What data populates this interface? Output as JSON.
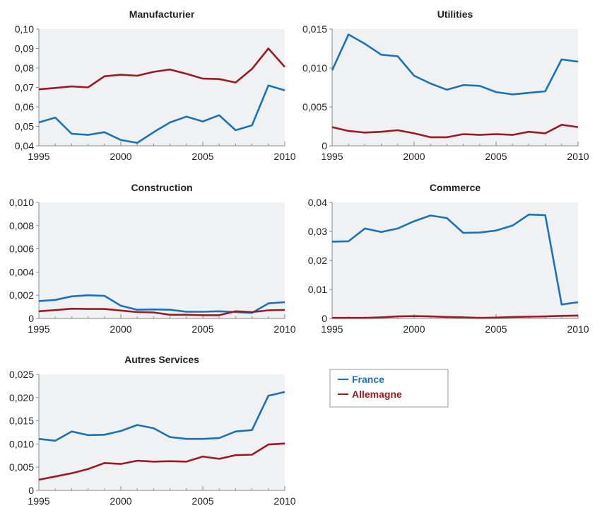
{
  "legend": {
    "items": [
      {
        "label": "France",
        "color": "#1a73b8"
      },
      {
        "label": "Allemagne",
        "color": "#9b1b24"
      }
    ]
  },
  "colors": {
    "panel_bg": "#f0f1f2",
    "axis": "#888888"
  },
  "chart_data": [
    {
      "type": "line",
      "title": "Manufacturier",
      "xlim": [
        1995,
        2010
      ],
      "ylim": [
        0.04,
        0.1
      ],
      "yticks": [
        "0,04",
        "0,05",
        "0,06",
        "0,07",
        "0,08",
        "0,09",
        "0,10"
      ],
      "xticks": [
        "1995",
        "2000",
        "2005",
        "2010"
      ],
      "x": [
        1995,
        1996,
        1997,
        1998,
        1999,
        2000,
        2001,
        2002,
        2003,
        2004,
        2005,
        2006,
        2007,
        2008,
        2009,
        2010
      ],
      "series": [
        {
          "name": "France",
          "values": [
            0.052,
            0.0545,
            0.0462,
            0.0456,
            0.047,
            0.043,
            0.0415,
            0.047,
            0.052,
            0.055,
            0.0525,
            0.0557,
            0.048,
            0.0505,
            0.071,
            0.0685
          ]
        },
        {
          "name": "Allemagne",
          "values": [
            0.069,
            0.0697,
            0.0705,
            0.07,
            0.0757,
            0.0765,
            0.076,
            0.078,
            0.0792,
            0.077,
            0.0745,
            0.0743,
            0.0725,
            0.0795,
            0.09,
            0.0805
          ]
        }
      ]
    },
    {
      "type": "line",
      "title": "Utilities",
      "xlim": [
        1995,
        2010
      ],
      "ylim": [
        0,
        0.015
      ],
      "yticks": [
        "0",
        "0,005",
        "0,010",
        "0,015"
      ],
      "xticks": [
        "1995",
        "2000",
        "2005",
        "2010"
      ],
      "x": [
        1995,
        1996,
        1997,
        1998,
        1999,
        2000,
        2001,
        2002,
        2003,
        2004,
        2005,
        2006,
        2007,
        2008,
        2009,
        2010
      ],
      "series": [
        {
          "name": "France",
          "values": [
            0.0097,
            0.0143,
            0.0131,
            0.0117,
            0.0115,
            0.009,
            0.008,
            0.0072,
            0.0078,
            0.0077,
            0.0069,
            0.0066,
            0.0068,
            0.007,
            0.0111,
            0.0108
          ]
        },
        {
          "name": "Allemagne",
          "values": [
            0.0024,
            0.0019,
            0.0017,
            0.0018,
            0.002,
            0.0016,
            0.0011,
            0.0011,
            0.0015,
            0.0014,
            0.0015,
            0.0014,
            0.0018,
            0.0016,
            0.0027,
            0.0024
          ]
        }
      ]
    },
    {
      "type": "line",
      "title": "Construction",
      "xlim": [
        1995,
        2010
      ],
      "ylim": [
        0,
        0.01
      ],
      "yticks": [
        "0",
        "0,002",
        "0,004",
        "0,006",
        "0,008",
        "0,010"
      ],
      "xticks": [
        "1995",
        "2000",
        "2005",
        "2010"
      ],
      "x": [
        1995,
        1996,
        1997,
        1998,
        1999,
        2000,
        2001,
        2002,
        2003,
        2004,
        2005,
        2006,
        2007,
        2008,
        2009,
        2010
      ],
      "series": [
        {
          "name": "France",
          "values": [
            0.0015,
            0.0016,
            0.0019,
            0.002,
            0.00195,
            0.0011,
            0.00075,
            0.00078,
            0.00075,
            0.00058,
            0.00058,
            0.00062,
            0.00055,
            0.00048,
            0.0013,
            0.0014
          ]
        },
        {
          "name": "Allemagne",
          "values": [
            0.00062,
            0.00072,
            0.00084,
            0.00082,
            0.00082,
            0.00068,
            0.00055,
            0.00052,
            0.00032,
            0.00032,
            0.00028,
            0.00028,
            0.00062,
            0.00055,
            0.0007,
            0.00073
          ]
        }
      ]
    },
    {
      "type": "line",
      "title": "Commerce",
      "xlim": [
        1995,
        2010
      ],
      "ylim": [
        0,
        0.04
      ],
      "yticks": [
        "0",
        "0,01",
        "0,02",
        "0,03",
        "0,04"
      ],
      "xticks": [
        "1995",
        "2000",
        "2005",
        "2010"
      ],
      "x": [
        1995,
        1996,
        1997,
        1998,
        1999,
        2000,
        2001,
        2002,
        2003,
        2004,
        2005,
        2006,
        2007,
        2008,
        2009,
        2010
      ],
      "series": [
        {
          "name": "France",
          "values": [
            0.0265,
            0.0266,
            0.031,
            0.0298,
            0.031,
            0.0335,
            0.0355,
            0.0346,
            0.0295,
            0.0296,
            0.0303,
            0.032,
            0.0358,
            0.0356,
            0.0048,
            0.0056
          ]
        },
        {
          "name": "Allemagne",
          "values": [
            0.0002,
            0.0002,
            0.0002,
            0.0004,
            0.0007,
            0.0008,
            0.0007,
            0.0005,
            0.0004,
            0.0002,
            0.0003,
            0.0005,
            0.0006,
            0.0007,
            0.0009,
            0.001
          ]
        }
      ]
    },
    {
      "type": "line",
      "title": "Autres Services",
      "xlim": [
        1995,
        2010
      ],
      "ylim": [
        0,
        0.025
      ],
      "yticks": [
        "0",
        "0,005",
        "0,010",
        "0,015",
        "0,020",
        "0,025"
      ],
      "xticks": [
        "1995",
        "2000",
        "2005",
        "2010"
      ],
      "x": [
        1995,
        1996,
        1997,
        1998,
        1999,
        2000,
        2001,
        2002,
        2003,
        2004,
        2005,
        2006,
        2007,
        2008,
        2009,
        2010
      ],
      "series": [
        {
          "name": "France",
          "values": [
            0.0111,
            0.0107,
            0.0127,
            0.0119,
            0.012,
            0.0128,
            0.0141,
            0.0134,
            0.0115,
            0.0111,
            0.0111,
            0.0113,
            0.0127,
            0.013,
            0.0204,
            0.0212
          ]
        },
        {
          "name": "Allemagne",
          "values": [
            0.0023,
            0.003,
            0.0037,
            0.0046,
            0.0059,
            0.0057,
            0.0064,
            0.0062,
            0.0063,
            0.0062,
            0.0073,
            0.0068,
            0.0076,
            0.0077,
            0.0099,
            0.0101
          ]
        }
      ]
    }
  ]
}
